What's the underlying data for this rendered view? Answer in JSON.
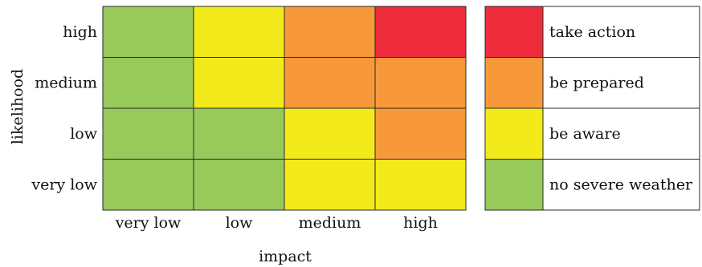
{
  "chart_data": {
    "type": "heatmap",
    "xlabel": "impact",
    "ylabel": "likelihood",
    "x_categories": [
      "very low",
      "low",
      "medium",
      "high"
    ],
    "y_categories_top_to_bottom": [
      "high",
      "medium",
      "low",
      "very low"
    ],
    "cells_top_to_bottom": [
      [
        "no-severe-weather",
        "be-aware",
        "be-prepared",
        "take-action"
      ],
      [
        "no-severe-weather",
        "be-aware",
        "be-prepared",
        "be-prepared"
      ],
      [
        "no-severe-weather",
        "no-severe-weather",
        "be-aware",
        "be-prepared"
      ],
      [
        "no-severe-weather",
        "no-severe-weather",
        "be-aware",
        "be-aware"
      ]
    ],
    "legend": [
      {
        "key": "take-action",
        "label": "take action",
        "color": "#EE2B3B"
      },
      {
        "key": "be-prepared",
        "label": "be prepared",
        "color": "#F7993A"
      },
      {
        "key": "be-aware",
        "label": "be aware",
        "color": "#F3EA1B"
      },
      {
        "key": "no-severe-weather",
        "label": "no severe weather",
        "color": "#97C95B"
      }
    ],
    "legend_placement": "right"
  }
}
